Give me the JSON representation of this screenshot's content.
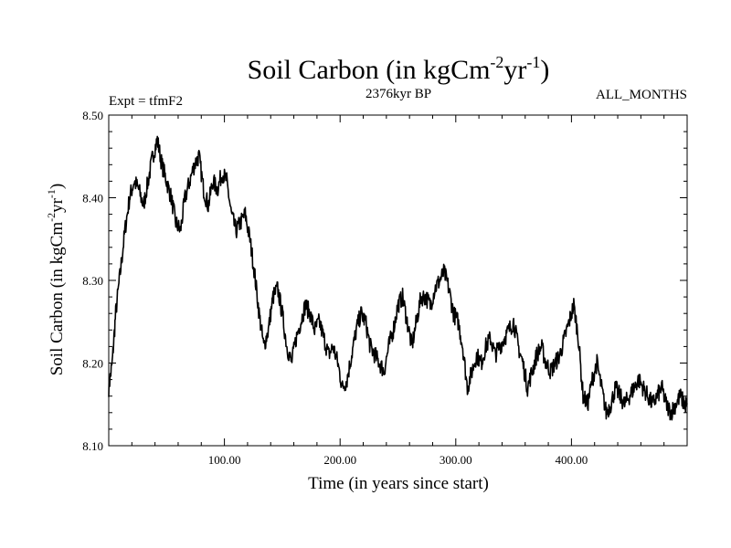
{
  "chart_data": {
    "type": "line",
    "title": "Soil Carbon (in kgCm",
    "title_sup1": "-2",
    "title_mid": "yr",
    "title_sup2": "-1",
    "title_end": ")",
    "subtitle_left": "Expt = tfmF2",
    "subtitle_center": "2376kyr BP",
    "subtitle_right": "ALL_MONTHS",
    "xlabel": "Time (in years since start)",
    "ylabel": "Soil Carbon (in kgCm",
    "ylabel_sup1": "-2",
    "ylabel_mid": "yr",
    "ylabel_sup2": "-1",
    "ylabel_end": ")",
    "xlim": [
      0,
      500
    ],
    "ylim": [
      8.1,
      8.5
    ],
    "xticks": [
      {
        "value": 100,
        "label": "100.00"
      },
      {
        "value": 200,
        "label": "200.00"
      },
      {
        "value": 300,
        "label": "300.00"
      },
      {
        "value": 400,
        "label": "400.00"
      }
    ],
    "yticks": [
      {
        "value": 8.1,
        "label": "8.10"
      },
      {
        "value": 8.2,
        "label": "8.20"
      },
      {
        "value": 8.3,
        "label": "8.30"
      },
      {
        "value": 8.4,
        "label": "8.40"
      },
      {
        "value": 8.5,
        "label": "8.50"
      }
    ],
    "series": [
      {
        "name": "Soil Carbon",
        "color": "#000000",
        "x": [
          0,
          3,
          6,
          10,
          14,
          18,
          22,
          26,
          30,
          34,
          38,
          42,
          46,
          50,
          54,
          58,
          62,
          66,
          70,
          74,
          78,
          82,
          86,
          90,
          94,
          98,
          102,
          106,
          110,
          114,
          118,
          122,
          126,
          130,
          134,
          138,
          142,
          146,
          150,
          154,
          158,
          162,
          166,
          170,
          174,
          178,
          182,
          186,
          190,
          194,
          198,
          202,
          206,
          210,
          214,
          218,
          222,
          226,
          230,
          234,
          238,
          242,
          246,
          250,
          254,
          258,
          262,
          266,
          270,
          274,
          278,
          282,
          286,
          290,
          294,
          298,
          302,
          306,
          310,
          314,
          318,
          322,
          326,
          330,
          334,
          338,
          342,
          346,
          350,
          354,
          358,
          362,
          366,
          370,
          374,
          378,
          382,
          386,
          390,
          394,
          398,
          402,
          406,
          410,
          414,
          418,
          422,
          426,
          430,
          434,
          438,
          442,
          446,
          450,
          454,
          458,
          462,
          466,
          470,
          474,
          478,
          482,
          486,
          490,
          494,
          498,
          500
        ],
        "values": [
          8.17,
          8.2,
          8.26,
          8.31,
          8.36,
          8.4,
          8.42,
          8.41,
          8.39,
          8.42,
          8.45,
          8.47,
          8.44,
          8.42,
          8.4,
          8.37,
          8.36,
          8.4,
          8.42,
          8.44,
          8.45,
          8.41,
          8.39,
          8.42,
          8.41,
          8.43,
          8.42,
          8.38,
          8.36,
          8.37,
          8.38,
          8.35,
          8.31,
          8.26,
          8.22,
          8.24,
          8.28,
          8.29,
          8.26,
          8.22,
          8.2,
          8.23,
          8.25,
          8.27,
          8.26,
          8.24,
          8.25,
          8.23,
          8.21,
          8.22,
          8.2,
          8.17,
          8.18,
          8.21,
          8.24,
          8.26,
          8.25,
          8.22,
          8.21,
          8.2,
          8.19,
          8.22,
          8.24,
          8.27,
          8.28,
          8.25,
          8.22,
          8.25,
          8.28,
          8.28,
          8.27,
          8.29,
          8.3,
          8.31,
          8.29,
          8.26,
          8.25,
          8.22,
          8.17,
          8.19,
          8.21,
          8.2,
          8.22,
          8.23,
          8.21,
          8.22,
          8.23,
          8.24,
          8.25,
          8.22,
          8.2,
          8.17,
          8.19,
          8.21,
          8.22,
          8.2,
          8.19,
          8.2,
          8.21,
          8.23,
          8.25,
          8.27,
          8.23,
          8.16,
          8.15,
          8.18,
          8.2,
          8.17,
          8.14,
          8.15,
          8.17,
          8.16,
          8.15,
          8.16,
          8.17,
          8.18,
          8.17,
          8.16,
          8.15,
          8.16,
          8.17,
          8.15,
          8.14,
          8.15,
          8.16,
          8.15,
          8.15
        ]
      }
    ],
    "grid": false,
    "legend": "none"
  }
}
